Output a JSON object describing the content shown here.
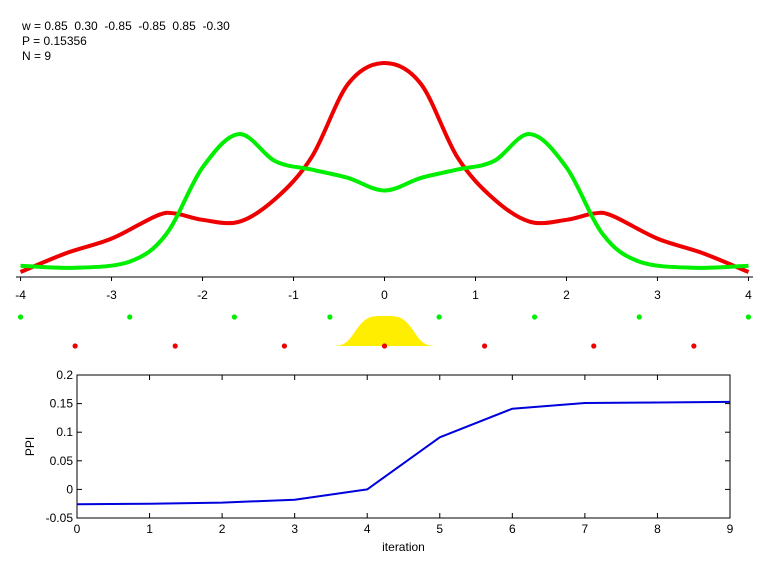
{
  "header": {
    "w_text": "w = 0.85  0.30  -0.85  -0.85  0.85  -0.30",
    "p_text": "P = 0.15356",
    "n_text": "N = 9"
  },
  "colors": {
    "red_curve": "#ee0000",
    "green_curve": "#00ee00",
    "blue_line": "#0000dd",
    "yellow_fill": "#ffee00"
  },
  "chart_data": [
    {
      "type": "line",
      "title": "",
      "xlabel": "",
      "ylabel": "",
      "xlim": [
        -4.05,
        4.05
      ],
      "xticks": [
        -4,
        -3,
        -2,
        -1,
        0,
        1,
        2,
        3,
        4
      ],
      "axis_style": "bottom-only",
      "series": [
        {
          "color": "#ee0000",
          "x": [
            -4.0,
            -3.5,
            -3.0,
            -2.5,
            -2.3,
            -2.0,
            -1.6,
            -1.2,
            -0.8,
            -0.4,
            0.0,
            0.4,
            0.8,
            1.2,
            1.6,
            2.0,
            2.3,
            2.5,
            3.0,
            3.5,
            4.0
          ],
          "y": [
            0.0,
            0.09,
            0.16,
            0.27,
            0.28,
            0.25,
            0.24,
            0.35,
            0.55,
            0.9,
            1.0,
            0.9,
            0.55,
            0.35,
            0.24,
            0.25,
            0.28,
            0.27,
            0.16,
            0.09,
            0.0
          ]
        },
        {
          "color": "#00ee00",
          "x": [
            -4.0,
            -3.4,
            -2.8,
            -2.4,
            -2.0,
            -1.6,
            -1.2,
            -0.8,
            -0.4,
            0.0,
            0.4,
            0.8,
            1.2,
            1.6,
            2.0,
            2.4,
            2.8,
            3.4,
            4.0
          ],
          "y": [
            0.03,
            0.02,
            0.05,
            0.18,
            0.5,
            0.66,
            0.53,
            0.49,
            0.45,
            0.39,
            0.45,
            0.49,
            0.53,
            0.66,
            0.5,
            0.18,
            0.05,
            0.02,
            0.03
          ]
        }
      ]
    },
    {
      "type": "scatter",
      "title": "",
      "series": [
        {
          "color": "#00ee00",
          "x": [
            -4.0,
            -2.8,
            -1.65,
            -0.6,
            0.6,
            1.65,
            2.8,
            4.0
          ]
        },
        {
          "color": "#ee0000",
          "x": [
            -3.4,
            -2.3,
            -1.1,
            0.0,
            1.1,
            2.3,
            3.4
          ]
        }
      ],
      "yellow_bump": {
        "type": "area",
        "center": 0.0,
        "halfwidth": 0.7
      }
    },
    {
      "type": "line",
      "title": "",
      "xlabel": "iteration",
      "ylabel": "PPI",
      "xlim": [
        0,
        9
      ],
      "ylim": [
        -0.05,
        0.2
      ],
      "xticks": [
        0,
        1,
        2,
        3,
        4,
        5,
        6,
        7,
        8,
        9
      ],
      "yticks": [
        -0.05,
        0,
        0.05,
        0.1,
        0.15,
        0.2
      ],
      "ytick_labels": [
        "-0.05",
        "0",
        "0.05",
        "0.1",
        "0.15",
        "0.2"
      ],
      "series": [
        {
          "color": "#0000dd",
          "x": [
            0,
            1,
            2,
            3,
            4,
            5,
            6,
            7,
            8,
            9
          ],
          "y": [
            -0.026,
            -0.025,
            -0.023,
            -0.018,
            0.0,
            0.091,
            0.141,
            0.151,
            0.152,
            0.153
          ]
        }
      ]
    }
  ]
}
